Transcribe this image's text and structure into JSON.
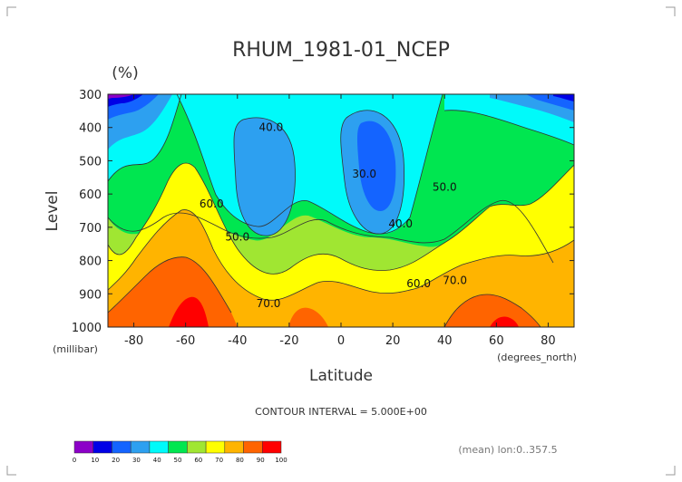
{
  "chart_data": {
    "type": "contour",
    "title": "RHUM_1981-01_NCEP",
    "units": "(%)",
    "xlabel": "Latitude",
    "xlabel_units": "(degrees_north)",
    "ylabel": "Level",
    "ylabel_units": "(millibar)",
    "xlim": [
      -90,
      90
    ],
    "ylim": [
      1000,
      300
    ],
    "x_ticks": [
      -80,
      -60,
      -40,
      -20,
      0,
      20,
      40,
      60,
      80
    ],
    "y_ticks": [
      300,
      400,
      500,
      600,
      700,
      800,
      900,
      1000
    ],
    "contour_interval_text": "CONTOUR INTERVAL = 5.000E+00",
    "contour_labels": [
      {
        "text": "40.0",
        "lat": -27,
        "level": 410
      },
      {
        "text": "30.0",
        "lat": 9,
        "level": 550
      },
      {
        "text": "50.0",
        "lat": 40,
        "level": 590
      },
      {
        "text": "60.0",
        "lat": -50,
        "level": 640
      },
      {
        "text": "50.0",
        "lat": -40,
        "level": 740
      },
      {
        "text": "40.0",
        "lat": 23,
        "level": 700
      },
      {
        "text": "60.0",
        "lat": 30,
        "level": 880
      },
      {
        "text": "70.0",
        "lat": 44,
        "level": 870
      },
      {
        "text": "70.0",
        "lat": -28,
        "level": 940
      }
    ],
    "colorbar": {
      "ticks": [
        "0",
        "10",
        "20",
        "30",
        "40",
        "50",
        "60",
        "70",
        "80",
        "90",
        "100"
      ],
      "colors": [
        "#8c00c8",
        "#0000e6",
        "#1464ff",
        "#2da0f0",
        "#00fafa",
        "#00e650",
        "#a0e632",
        "#ffff00",
        "#ffb400",
        "#ff6400",
        "#ff0000"
      ]
    },
    "footnote": "(mean) lon:0..357.5"
  }
}
